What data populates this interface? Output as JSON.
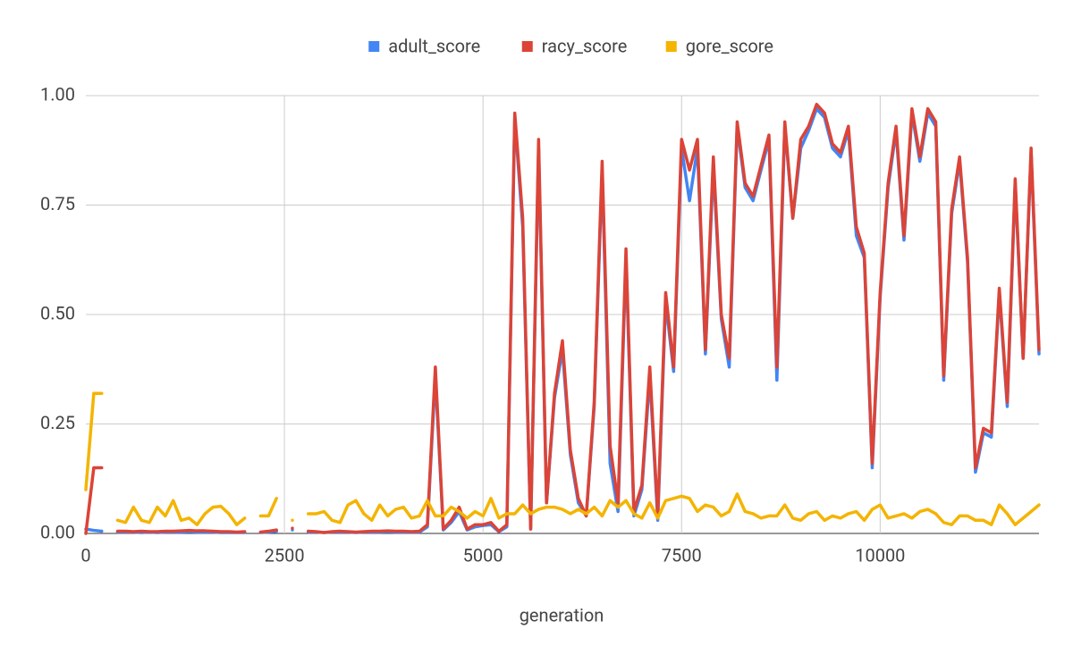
{
  "chart_data": {
    "type": "line",
    "x_label": "generation",
    "x": [
      0,
      100,
      200,
      300,
      400,
      500,
      600,
      700,
      800,
      900,
      1000,
      1100,
      1200,
      1300,
      1400,
      1500,
      1600,
      1700,
      1800,
      1900,
      2000,
      2100,
      2200,
      2300,
      2400,
      2500,
      2600,
      2700,
      2800,
      2900,
      3000,
      3100,
      3200,
      3300,
      3400,
      3500,
      3600,
      3700,
      3800,
      3900,
      4000,
      4100,
      4200,
      4300,
      4400,
      4500,
      4600,
      4700,
      4800,
      4900,
      5000,
      5100,
      5200,
      5300,
      5400,
      5500,
      5600,
      5700,
      5800,
      5900,
      6000,
      6100,
      6200,
      6300,
      6400,
      6500,
      6600,
      6700,
      6800,
      6900,
      7000,
      7100,
      7200,
      7300,
      7400,
      7500,
      7600,
      7700,
      7800,
      7900,
      8000,
      8100,
      8200,
      8300,
      8400,
      8500,
      8600,
      8700,
      8800,
      8900,
      9000,
      9100,
      9200,
      9300,
      9400,
      9500,
      9600,
      9700,
      9800,
      9900,
      10000,
      10100,
      10200,
      10300,
      10400,
      10500,
      10600,
      10700,
      10800,
      10900,
      11000,
      11100,
      11200,
      11300,
      11400,
      11500,
      11600,
      11700,
      11800,
      11900,
      12000
    ],
    "series": [
      {
        "name": "adult_score",
        "color": "#4285f4",
        "values": [
          0.01,
          0.007,
          0.005,
          null,
          0.003,
          0.003,
          0.003,
          0.002,
          0.003,
          0.002,
          0.003,
          0.003,
          0.003,
          0.004,
          0.003,
          0.003,
          0.003,
          0.002,
          0.002,
          0.002,
          0.002,
          null,
          0.002,
          0.003,
          0.005,
          null,
          0.008,
          null,
          0.003,
          0.003,
          0.002,
          0.003,
          0.003,
          0.003,
          0.002,
          0.003,
          0.003,
          0.003,
          0.004,
          0.003,
          0.003,
          0.003,
          0.003,
          0.015,
          0.36,
          0.008,
          0.025,
          0.05,
          0.008,
          0.015,
          0.018,
          0.02,
          0.004,
          0.015,
          0.95,
          0.7,
          0.01,
          0.88,
          0.07,
          0.31,
          0.42,
          0.18,
          0.07,
          0.04,
          0.29,
          0.83,
          0.16,
          0.05,
          0.63,
          0.04,
          0.1,
          0.36,
          0.03,
          0.53,
          0.37,
          0.88,
          0.76,
          0.88,
          0.41,
          0.84,
          0.49,
          0.38,
          0.93,
          0.79,
          0.76,
          0.83,
          0.9,
          0.35,
          0.93,
          0.72,
          0.88,
          0.92,
          0.97,
          0.95,
          0.88,
          0.86,
          0.92,
          0.68,
          0.63,
          0.15,
          0.54,
          0.79,
          0.92,
          0.67,
          0.96,
          0.85,
          0.96,
          0.93,
          0.35,
          0.73,
          0.85,
          0.62,
          0.14,
          0.23,
          0.22,
          0.55,
          0.29,
          0.8,
          0.4,
          0.87,
          0.41
        ]
      },
      {
        "name": "racy_score",
        "color": "#db4437",
        "values": [
          0,
          0.15,
          0.15,
          null,
          0.005,
          0.005,
          0.004,
          0.005,
          0.004,
          0.004,
          0.005,
          0.005,
          0.006,
          0.007,
          0.006,
          0.006,
          0.005,
          0.004,
          0.004,
          0.003,
          0.004,
          null,
          0.003,
          0.005,
          0.008,
          null,
          0.012,
          null,
          0.005,
          0.004,
          0.002,
          0.004,
          0.005,
          0.004,
          0.003,
          0.004,
          0.005,
          0.005,
          0.006,
          0.005,
          0.005,
          0.004,
          0.005,
          0.02,
          0.38,
          0.01,
          0.03,
          0.06,
          0.01,
          0.02,
          0.02,
          0.025,
          0.005,
          0.02,
          0.96,
          0.72,
          0.01,
          0.9,
          0.07,
          0.32,
          0.44,
          0.19,
          0.08,
          0.04,
          0.3,
          0.85,
          0.2,
          0.07,
          0.65,
          0.05,
          0.11,
          0.38,
          0.04,
          0.55,
          0.38,
          0.9,
          0.83,
          0.9,
          0.42,
          0.86,
          0.5,
          0.4,
          0.94,
          0.8,
          0.77,
          0.84,
          0.91,
          0.38,
          0.94,
          0.72,
          0.9,
          0.93,
          0.98,
          0.96,
          0.89,
          0.87,
          0.93,
          0.7,
          0.64,
          0.16,
          0.55,
          0.8,
          0.93,
          0.68,
          0.97,
          0.86,
          0.97,
          0.94,
          0.36,
          0.74,
          0.86,
          0.63,
          0.15,
          0.24,
          0.23,
          0.56,
          0.3,
          0.81,
          0.4,
          0.88,
          0.42
        ]
      },
      {
        "name": "gore_score",
        "color": "#f4b400",
        "values": [
          0.1,
          0.32,
          0.32,
          null,
          0.03,
          0.025,
          0.06,
          0.03,
          0.025,
          0.06,
          0.04,
          0.075,
          0.03,
          0.035,
          0.02,
          0.045,
          0.06,
          0.062,
          0.045,
          0.02,
          0.035,
          null,
          0.04,
          0.04,
          0.08,
          null,
          0.03,
          null,
          0.045,
          0.045,
          0.05,
          0.03,
          0.025,
          0.065,
          0.075,
          0.045,
          0.03,
          0.065,
          0.04,
          0.055,
          0.06,
          0.035,
          0.04,
          0.075,
          0.04,
          0.04,
          0.06,
          0.05,
          0.035,
          0.05,
          0.04,
          0.08,
          0.035,
          0.045,
          0.045,
          0.065,
          0.045,
          0.055,
          0.06,
          0.06,
          0.055,
          0.045,
          0.055,
          0.045,
          0.06,
          0.04,
          0.075,
          0.06,
          0.075,
          0.045,
          0.035,
          0.07,
          0.035,
          0.075,
          0.08,
          0.085,
          0.08,
          0.05,
          0.065,
          0.06,
          0.04,
          0.05,
          0.09,
          0.05,
          0.045,
          0.035,
          0.04,
          0.04,
          0.065,
          0.035,
          0.03,
          0.045,
          0.05,
          0.03,
          0.04,
          0.035,
          0.045,
          0.05,
          0.03,
          0.055,
          0.065,
          0.035,
          0.04,
          0.045,
          0.035,
          0.05,
          0.055,
          0.045,
          0.025,
          0.02,
          0.04,
          0.04,
          0.03,
          0.03,
          0.02,
          0.065,
          0.045,
          0.02,
          0.035,
          0.05,
          0.065
        ]
      }
    ],
    "xlim": [
      0,
      12000
    ],
    "xticks": [
      0,
      2500,
      5000,
      7500,
      10000
    ],
    "ylim": [
      0,
      1
    ],
    "yticks": [
      {
        "value": 0,
        "label": "0.00"
      },
      {
        "value": 0.25,
        "label": "0.25"
      },
      {
        "value": 0.5,
        "label": "0.50"
      },
      {
        "value": 0.75,
        "label": "0.75"
      },
      {
        "value": 1,
        "label": "1.00"
      }
    ],
    "grid": true,
    "legend": "top"
  }
}
